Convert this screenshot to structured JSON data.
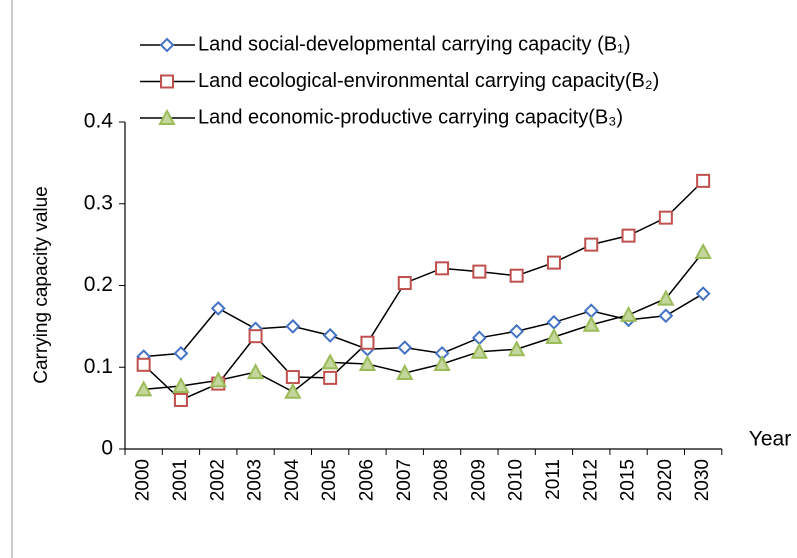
{
  "chart_data": {
    "type": "line",
    "y_label": "Carrying capacity value",
    "x_label": "Year",
    "categories": [
      "2000",
      "2001",
      "2002",
      "2003",
      "2004",
      "2005",
      "2006",
      "2007",
      "2008",
      "2009",
      "2010",
      "2011",
      "2012",
      "2015",
      "2020",
      "2030"
    ],
    "line_color": "#000000",
    "series": [
      {
        "name": "Land social-developmental carrying capacity (B₁)",
        "color": "#4472c4",
        "marker": "diamond",
        "values": [
          0.113,
          0.117,
          0.172,
          0.147,
          0.15,
          0.139,
          0.122,
          0.124,
          0.117,
          0.136,
          0.144,
          0.155,
          0.169,
          0.158,
          0.163,
          0.19
        ]
      },
      {
        "name": "Land ecological-environmental carrying capacity(B₂)",
        "color": "#c0504d",
        "marker": "square",
        "values": [
          0.103,
          0.06,
          0.08,
          0.138,
          0.088,
          0.087,
          0.13,
          0.203,
          0.221,
          0.217,
          0.212,
          0.228,
          0.25,
          0.261,
          0.283,
          0.328
        ]
      },
      {
        "name": "Land economic-productive carrying capacity(B₃)",
        "color": "#9bbb59",
        "marker": "triangle",
        "values": [
          0.073,
          0.077,
          0.084,
          0.094,
          0.07,
          0.106,
          0.104,
          0.093,
          0.104,
          0.119,
          0.122,
          0.137,
          0.152,
          0.164,
          0.184,
          0.241
        ]
      }
    ],
    "ylim": [
      0,
      0.4
    ],
    "yticks": [
      0,
      0.1,
      0.2,
      0.3,
      0.4
    ]
  }
}
